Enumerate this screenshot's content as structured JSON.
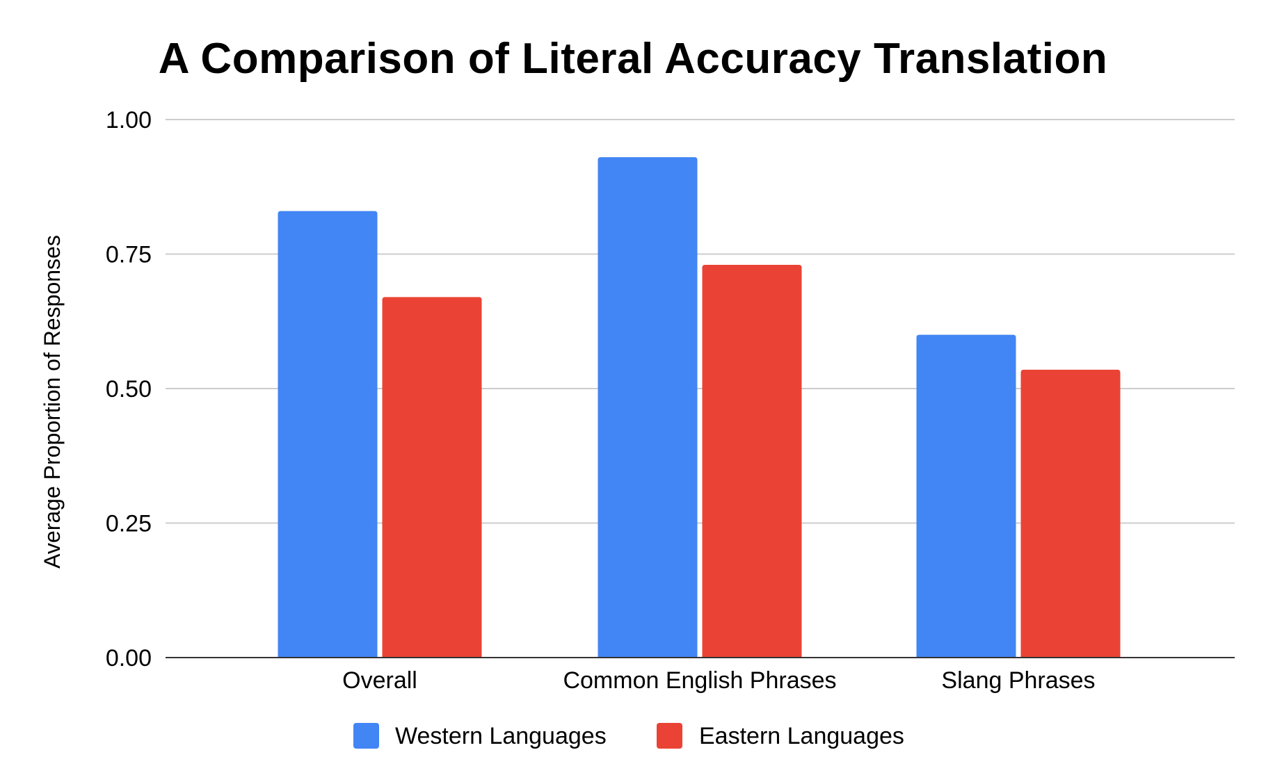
{
  "chart_data": {
    "type": "bar",
    "title": "A Comparison of Literal Accuracy Translation",
    "xlabel": "",
    "ylabel": "Average Proportion of Responses",
    "categories": [
      "Overall",
      "Common English Phrases",
      "Slang Phrases"
    ],
    "series": [
      {
        "name": "Western Languages",
        "color": "#4285F4",
        "values": [
          0.83,
          0.93,
          0.6
        ]
      },
      {
        "name": "Eastern Languages",
        "color": "#EA4335",
        "values": [
          0.67,
          0.73,
          0.535
        ]
      }
    ],
    "ylim": [
      0,
      1
    ],
    "yticks": [
      "0.00",
      "0.25",
      "0.50",
      "0.75",
      "1.00"
    ],
    "grid": true,
    "legend_position": "bottom"
  }
}
